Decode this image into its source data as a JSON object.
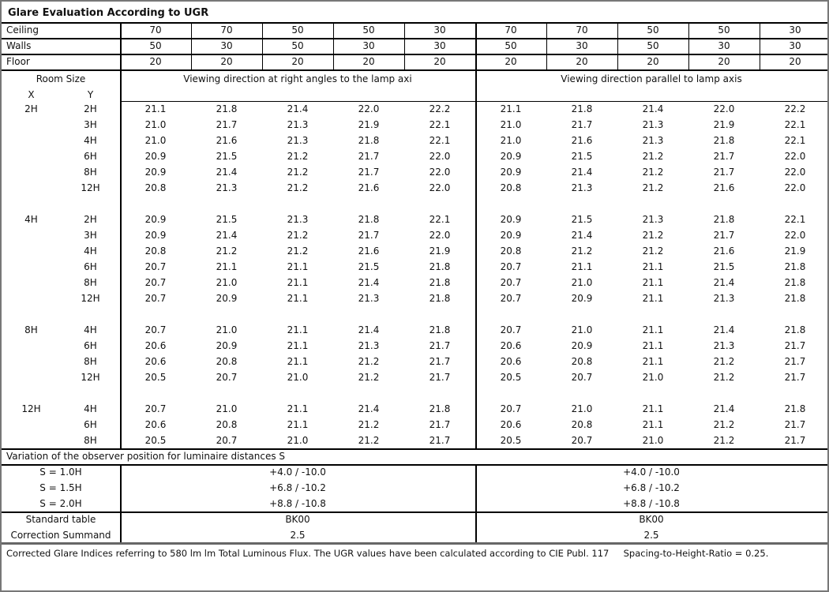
{
  "title": "Glare Evaluation According to UGR",
  "reflectances": [
    {
      "label": "Ceiling",
      "values": [
        "70",
        "70",
        "50",
        "50",
        "30",
        "70",
        "70",
        "50",
        "50",
        "30"
      ]
    },
    {
      "label": "Walls",
      "values": [
        "50",
        "30",
        "50",
        "30",
        "30",
        "50",
        "30",
        "50",
        "30",
        "30"
      ]
    },
    {
      "label": "Floor",
      "values": [
        "20",
        "20",
        "20",
        "20",
        "20",
        "20",
        "20",
        "20",
        "20",
        "20"
      ]
    }
  ],
  "room_size_label": "Room Size",
  "x_label": "X",
  "y_label": "Y",
  "direction_perpendicular": "Viewing direction at right angles to the lamp axi",
  "direction_parallel": "Viewing direction parallel to lamp axis",
  "groups": [
    {
      "x": "2H",
      "rows": [
        {
          "y": "2H",
          "values": [
            "21.1",
            "21.8",
            "21.4",
            "22.0",
            "22.2",
            "21.1",
            "21.8",
            "21.4",
            "22.0",
            "22.2"
          ]
        },
        {
          "y": "3H",
          "values": [
            "21.0",
            "21.7",
            "21.3",
            "21.9",
            "22.1",
            "21.0",
            "21.7",
            "21.3",
            "21.9",
            "22.1"
          ]
        },
        {
          "y": "4H",
          "values": [
            "21.0",
            "21.6",
            "21.3",
            "21.8",
            "22.1",
            "21.0",
            "21.6",
            "21.3",
            "21.8",
            "22.1"
          ]
        },
        {
          "y": "6H",
          "values": [
            "20.9",
            "21.5",
            "21.2",
            "21.7",
            "22.0",
            "20.9",
            "21.5",
            "21.2",
            "21.7",
            "22.0"
          ]
        },
        {
          "y": "8H",
          "values": [
            "20.9",
            "21.4",
            "21.2",
            "21.7",
            "22.0",
            "20.9",
            "21.4",
            "21.2",
            "21.7",
            "22.0"
          ]
        },
        {
          "y": "12H",
          "values": [
            "20.8",
            "21.3",
            "21.2",
            "21.6",
            "22.0",
            "20.8",
            "21.3",
            "21.2",
            "21.6",
            "22.0"
          ]
        }
      ]
    },
    {
      "x": "4H",
      "rows": [
        {
          "y": "2H",
          "values": [
            "20.9",
            "21.5",
            "21.3",
            "21.8",
            "22.1",
            "20.9",
            "21.5",
            "21.3",
            "21.8",
            "22.1"
          ]
        },
        {
          "y": "3H",
          "values": [
            "20.9",
            "21.4",
            "21.2",
            "21.7",
            "22.0",
            "20.9",
            "21.4",
            "21.2",
            "21.7",
            "22.0"
          ]
        },
        {
          "y": "4H",
          "values": [
            "20.8",
            "21.2",
            "21.2",
            "21.6",
            "21.9",
            "20.8",
            "21.2",
            "21.2",
            "21.6",
            "21.9"
          ]
        },
        {
          "y": "6H",
          "values": [
            "20.7",
            "21.1",
            "21.1",
            "21.5",
            "21.8",
            "20.7",
            "21.1",
            "21.1",
            "21.5",
            "21.8"
          ]
        },
        {
          "y": "8H",
          "values": [
            "20.7",
            "21.0",
            "21.1",
            "21.4",
            "21.8",
            "20.7",
            "21.0",
            "21.1",
            "21.4",
            "21.8"
          ]
        },
        {
          "y": "12H",
          "values": [
            "20.7",
            "20.9",
            "21.1",
            "21.3",
            "21.8",
            "20.7",
            "20.9",
            "21.1",
            "21.3",
            "21.8"
          ]
        }
      ]
    },
    {
      "x": "8H",
      "rows": [
        {
          "y": "4H",
          "values": [
            "20.7",
            "21.0",
            "21.1",
            "21.4",
            "21.8",
            "20.7",
            "21.0",
            "21.1",
            "21.4",
            "21.8"
          ]
        },
        {
          "y": "6H",
          "values": [
            "20.6",
            "20.9",
            "21.1",
            "21.3",
            "21.7",
            "20.6",
            "20.9",
            "21.1",
            "21.3",
            "21.7"
          ]
        },
        {
          "y": "8H",
          "values": [
            "20.6",
            "20.8",
            "21.1",
            "21.2",
            "21.7",
            "20.6",
            "20.8",
            "21.1",
            "21.2",
            "21.7"
          ]
        },
        {
          "y": "12H",
          "values": [
            "20.5",
            "20.7",
            "21.0",
            "21.2",
            "21.7",
            "20.5",
            "20.7",
            "21.0",
            "21.2",
            "21.7"
          ]
        }
      ]
    },
    {
      "x": "12H",
      "rows": [
        {
          "y": "4H",
          "values": [
            "20.7",
            "21.0",
            "21.1",
            "21.4",
            "21.8",
            "20.7",
            "21.0",
            "21.1",
            "21.4",
            "21.8"
          ]
        },
        {
          "y": "6H",
          "values": [
            "20.6",
            "20.8",
            "21.1",
            "21.2",
            "21.7",
            "20.6",
            "20.8",
            "21.1",
            "21.2",
            "21.7"
          ]
        },
        {
          "y": "8H",
          "values": [
            "20.5",
            "20.7",
            "21.0",
            "21.2",
            "21.7",
            "20.5",
            "20.7",
            "21.0",
            "21.2",
            "21.7"
          ]
        }
      ]
    }
  ],
  "variation_title": "Variation of the observer position for luminaire distances S",
  "variations": [
    {
      "label": "S = 1.0H",
      "perpendicular": "+4.0 / -10.0",
      "parallel": "+4.0 / -10.0"
    },
    {
      "label": "S = 1.5H",
      "perpendicular": "+6.8 / -10.2",
      "parallel": "+6.8 / -10.2"
    },
    {
      "label": "S = 2.0H",
      "perpendicular": "+8.8 / -10.8",
      "parallel": "+8.8 / -10.8"
    }
  ],
  "standard_table": {
    "label": "Standard table",
    "perpendicular": "BK00",
    "parallel": "BK00"
  },
  "correction_summand": {
    "label": "Correction Summand",
    "perpendicular": "2.5",
    "parallel": "2.5"
  },
  "footer": "Corrected Glare Indices referring to 580 lm lm Total Luminous Flux. The UGR values have been calculated according to CIE Publ. 117     Spacing-to-Height-Ratio = 0.25."
}
